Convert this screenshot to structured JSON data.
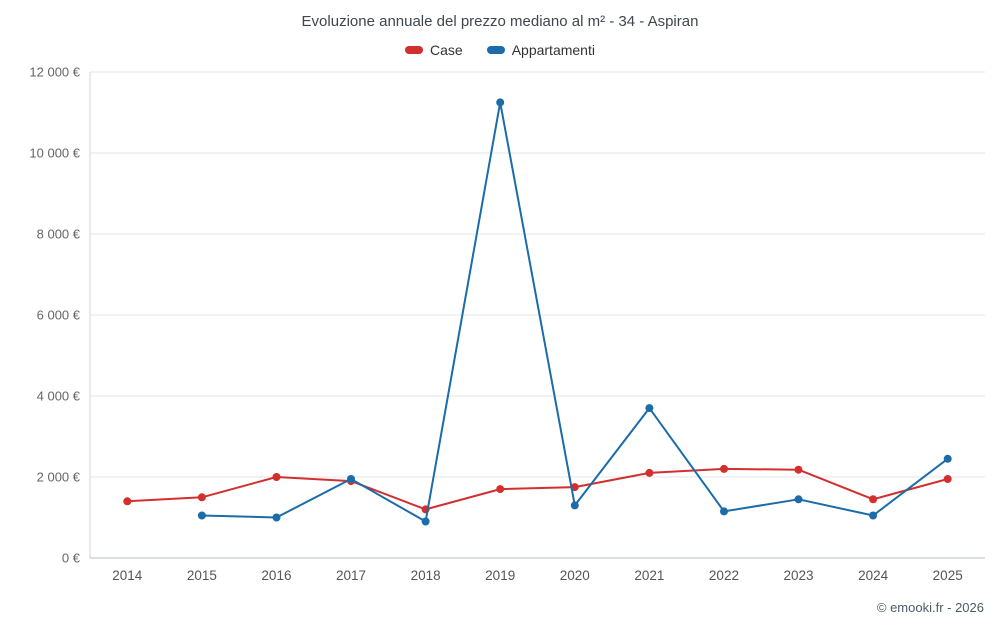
{
  "title": "Evoluzione annuale del prezzo mediano al m² - 34 - Aspiran",
  "footer": "© emooki.fr - 2026",
  "chart_data": {
    "type": "line",
    "title": "Evoluzione annuale del prezzo mediano al m² - 34 - Aspiran",
    "categories": [
      "2014",
      "2015",
      "2016",
      "2017",
      "2018",
      "2019",
      "2020",
      "2021",
      "2022",
      "2023",
      "2024",
      "2025"
    ],
    "series": [
      {
        "name": "Case",
        "color": "#d32f2f",
        "values": [
          1400,
          1500,
          2000,
          1900,
          1200,
          1700,
          1750,
          2100,
          2200,
          2180,
          1450,
          1950
        ]
      },
      {
        "name": "Appartamenti",
        "color": "#1b6ca8",
        "values": [
          null,
          1050,
          1000,
          1950,
          900,
          11250,
          1300,
          3700,
          1150,
          1450,
          1050,
          2450
        ]
      }
    ],
    "xlabel": "",
    "ylabel": "",
    "ylim": [
      0,
      12000
    ],
    "ytick_step": 2000,
    "ytick_labels": [
      "0 €",
      "2 000 €",
      "4 000 €",
      "6 000 €",
      "8 000 €",
      "10 000 €",
      "12 000 €"
    ],
    "grid": true,
    "legend_position": "top",
    "marker": "circle"
  }
}
